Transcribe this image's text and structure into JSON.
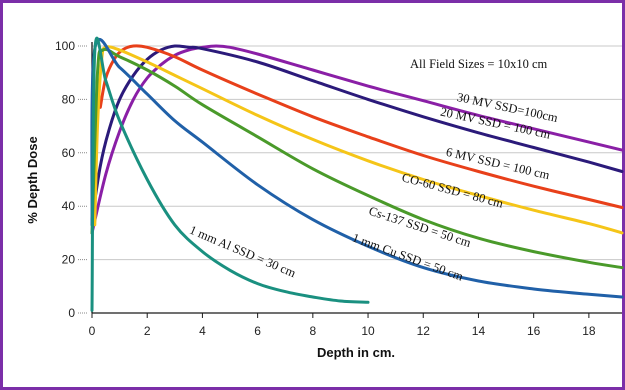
{
  "colors": {
    "border": "#7b2fa8",
    "plot_bg": "#ffffff",
    "grid": "#c8c8c8",
    "axis": "#1a1a1a"
  },
  "chart_data": {
    "type": "line",
    "title": "",
    "note": "All Field Sizes = 10x10 cm",
    "xlabel": "Depth in cm.",
    "ylabel": "% Depth Dose",
    "xlim": [
      0,
      19.2
    ],
    "ylim": [
      0,
      100
    ],
    "xticks": [
      0,
      2,
      4,
      6,
      8,
      10,
      12,
      14,
      16,
      18
    ],
    "yticks": [
      0,
      20,
      40,
      60,
      80,
      100
    ],
    "grid": {
      "horizontal": true,
      "vertical": false
    },
    "series": [
      {
        "name": "30 MV SSD=100cm",
        "label": "30 MV SSD=100cm",
        "color": "#8a1fa6",
        "x": [
          0,
          0.5,
          1,
          1.5,
          2,
          2.5,
          3,
          3.5,
          4,
          4.5,
          5,
          6,
          8,
          10,
          12,
          14,
          16,
          18,
          19.2
        ],
        "y": [
          30,
          52,
          68,
          80,
          88,
          93,
          96.5,
          98.5,
          99.5,
          100,
          99.5,
          97,
          91,
          85,
          79.5,
          74,
          69,
          64,
          61
        ]
      },
      {
        "name": "20 MV SSD = 100 cm",
        "label": "20 MV SSD = 100 cm",
        "color": "#2b1a7a",
        "x": [
          0,
          0.3,
          0.6,
          1,
          1.5,
          2,
          2.5,
          3,
          3.5,
          4,
          6,
          8,
          10,
          12,
          14,
          16,
          18,
          19.2
        ],
        "y": [
          35,
          55,
          68,
          80,
          89,
          95,
          98.5,
          100,
          99.5,
          99,
          94,
          87,
          80,
          73.5,
          67.5,
          62,
          56.5,
          53
        ]
      },
      {
        "name": "6 MV SSD = 100 cm",
        "label": "6 MV SSD = 100 cm",
        "color": "#e8401a",
        "x": [
          0.3,
          0.5,
          0.8,
          1.1,
          1.5,
          2,
          3,
          4,
          6,
          8,
          10,
          12,
          14,
          16,
          18,
          19.2
        ],
        "y": [
          77,
          88,
          95,
          98.5,
          100,
          99.5,
          96,
          91,
          82,
          73.5,
          66,
          59,
          53,
          47.5,
          42.5,
          39.5
        ]
      },
      {
        "name": "CO-60 SSD = 80 cm",
        "label": "CO-60 SSD = 80 cm",
        "color": "#f5c518",
        "x": [
          0.1,
          0.2,
          0.35,
          0.5,
          1,
          2,
          3,
          4,
          6,
          8,
          10,
          12,
          14,
          16,
          18,
          19.2
        ],
        "y": [
          33,
          70,
          95,
          99.5,
          98.5,
          94,
          89,
          84,
          74,
          65,
          57,
          50,
          44,
          38.5,
          33.5,
          30
        ]
      },
      {
        "name": "Cs-137 SSD = 50 cm",
        "label": "Cs-137 SSD = 50 cm",
        "color": "#4a9a2a",
        "x": [
          0,
          0.2,
          0.4,
          1,
          2,
          3,
          4,
          6,
          8,
          10,
          12,
          14,
          16,
          18,
          19.2
        ],
        "y": [
          30,
          90,
          98.5,
          96,
          91,
          85,
          78,
          66,
          54,
          44,
          35,
          28,
          23,
          19,
          17
        ]
      },
      {
        "name": "1 mm Cu SSD = 50 cm",
        "label": "1 mm Cu SSD = 50 cm",
        "color": "#2060a8",
        "x": [
          0,
          0.1,
          1,
          2,
          3,
          4,
          6,
          8,
          10,
          12,
          14,
          16,
          18,
          19.2
        ],
        "y": [
          33,
          99,
          92,
          82,
          72,
          64,
          48,
          35,
          25,
          17,
          12,
          9,
          7,
          6
        ]
      },
      {
        "name": "1 mm Al SSD = 30 cm",
        "label": "1 mm Al SSD = 30 cm",
        "color": "#1a9080",
        "x": [
          0,
          0.1,
          0.5,
          1,
          2,
          3,
          4,
          5,
          6,
          7,
          8,
          9,
          10
        ],
        "y": [
          1,
          98,
          87,
          72,
          50,
          33,
          23,
          16,
          11,
          8,
          6,
          4.5,
          4
        ]
      }
    ]
  }
}
